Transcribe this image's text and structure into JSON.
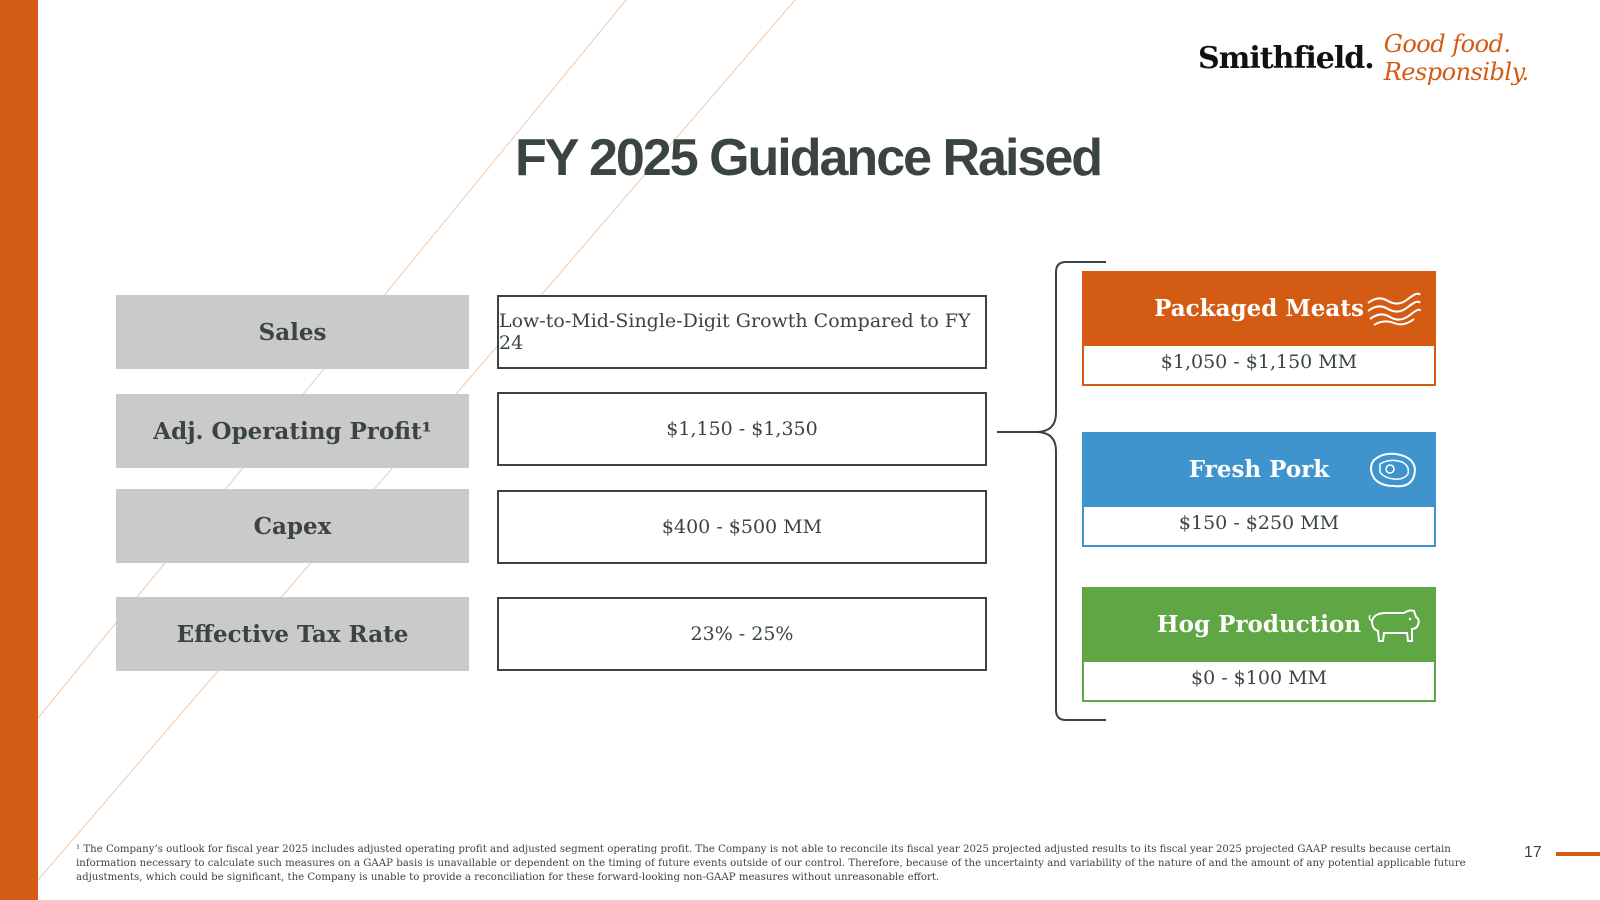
{
  "logo": {
    "brand": "Smithfield.",
    "tagline": "Good food. Responsibly."
  },
  "title": "FY 2025 Guidance Raised",
  "guidance": [
    {
      "label": "Sales",
      "value": "Low-to-Mid-Single-Digit Growth Compared to FY 24"
    },
    {
      "label": "Adj. Operating Profit¹",
      "value": "$1,150 - $1,350"
    },
    {
      "label": "Capex",
      "value": "$400 - $500 MM"
    },
    {
      "label": "Effective Tax Rate",
      "value": "23% - 25%"
    }
  ],
  "segments": [
    {
      "name": "Packaged Meats",
      "value": "$1,050 - $1,150 MM",
      "color": "#D35B14",
      "icon": "bacon-icon"
    },
    {
      "name": "Fresh Pork",
      "value": "$150 - $250 MM",
      "color": "#3F94CE",
      "icon": "steak-icon"
    },
    {
      "name": "Hog Production",
      "value": "$0 - $100 MM",
      "color": "#5FA644",
      "icon": "pig-icon"
    }
  ],
  "footnote": "¹ The Company’s outlook for fiscal year 2025 includes adjusted operating profit and adjusted segment operating profit. The Company is not able to reconcile its fiscal year 2025 projected adjusted results to its fiscal year 2025 projected GAAP results because certain information necessary to calculate such measures on a GAAP basis is unavailable or dependent on the timing of future events outside of our control. Therefore, because of the uncertainty and variability of the nature of and the amount of any potential applicable future adjustments, which could be significant, the Company is unable to provide a reconciliation for these forward-looking non-GAAP measures without unreasonable effort.",
  "page_number": "17",
  "colors": {
    "accent": "#D35B14",
    "text": "#3A4543",
    "label_bg": "#CACACA"
  }
}
